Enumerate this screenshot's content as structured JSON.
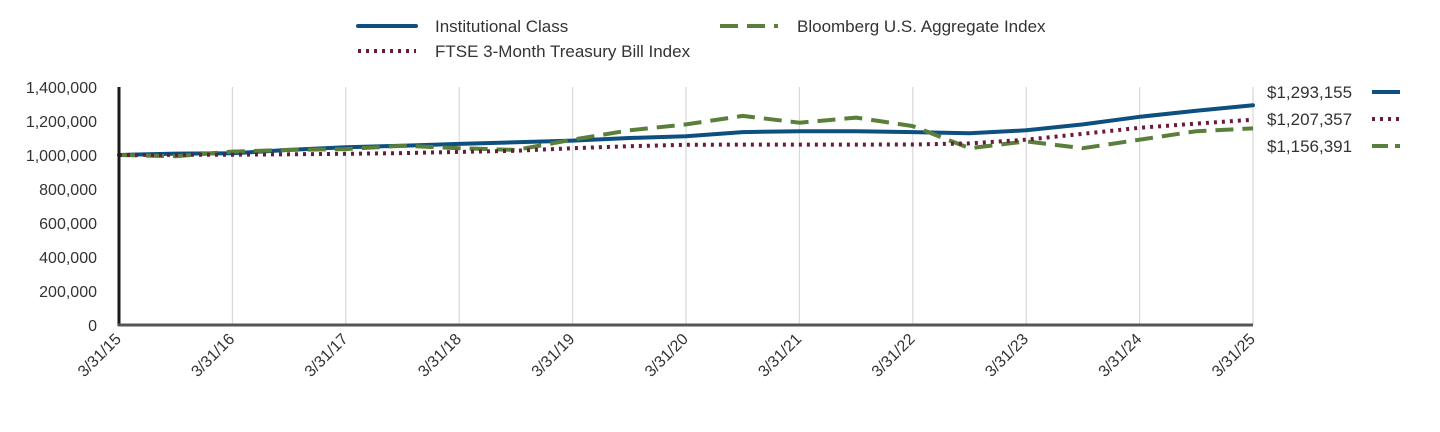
{
  "chart_data": {
    "type": "line",
    "title": "",
    "xlabel": "",
    "ylabel": "",
    "ylim": [
      0,
      1400000
    ],
    "y_ticks": [
      0,
      200000,
      400000,
      600000,
      800000,
      1000000,
      1200000,
      1400000
    ],
    "y_tick_labels": [
      "0",
      "200,000",
      "400,000",
      "600,000",
      "800,000",
      "1,000,000",
      "1,200,000",
      "1,400,000"
    ],
    "x_tick_labels": [
      "3/31/15",
      "3/31/16",
      "3/31/17",
      "3/31/18",
      "3/31/19",
      "3/31/20",
      "3/31/21",
      "3/31/22",
      "3/31/23",
      "3/31/24",
      "3/31/25"
    ],
    "grid": "vertical",
    "legend_position": "top",
    "series": [
      {
        "name": "Institutional Class",
        "style": "solid",
        "color": "#0d4f7f",
        "end_label": "$1,293,155",
        "x": [
          0,
          0.5,
          1,
          1.5,
          2,
          2.5,
          3,
          3.5,
          4,
          4.5,
          5,
          5.5,
          6,
          6.5,
          7,
          7.5,
          8,
          8.5,
          9,
          9.5,
          10
        ],
        "values": [
          1000000,
          1008000,
          1010000,
          1030000,
          1045000,
          1055000,
          1065000,
          1075000,
          1085000,
          1100000,
          1110000,
          1135000,
          1140000,
          1140000,
          1135000,
          1128000,
          1145000,
          1180000,
          1225000,
          1260000,
          1293155
        ]
      },
      {
        "name": "Bloomberg U.S. Aggregate Index",
        "style": "dashed",
        "color": "#5a7f3a",
        "end_label": "$1,156,391",
        "x": [
          0,
          0.5,
          1,
          1.5,
          2,
          2.5,
          3,
          3.5,
          4,
          4.5,
          5,
          5.5,
          6,
          6.5,
          7,
          7.5,
          8,
          8.5,
          9,
          9.5,
          10
        ],
        "values": [
          1000000,
          993000,
          1020000,
          1030000,
          1035000,
          1055000,
          1040000,
          1030000,
          1090000,
          1145000,
          1180000,
          1230000,
          1190000,
          1220000,
          1170000,
          1040000,
          1080000,
          1040000,
          1090000,
          1140000,
          1156391
        ]
      },
      {
        "name": "FTSE 3-Month Treasury Bill Index",
        "style": "dotted",
        "color": "#6b1a3d",
        "end_label": "$1,207,357",
        "x": [
          0,
          0.5,
          1,
          1.5,
          2,
          2.5,
          3,
          3.5,
          4,
          4.5,
          5,
          5.5,
          6,
          6.5,
          7,
          7.5,
          8,
          8.5,
          9,
          9.5,
          10
        ],
        "values": [
          1000000,
          1001000,
          1002000,
          1004000,
          1007000,
          1011000,
          1018000,
          1025000,
          1040000,
          1052000,
          1060000,
          1061000,
          1061000,
          1061000,
          1062000,
          1068000,
          1090000,
          1125000,
          1160000,
          1185000,
          1207357
        ]
      }
    ]
  }
}
